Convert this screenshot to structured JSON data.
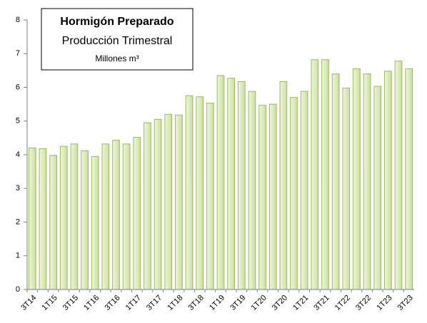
{
  "chart_data": {
    "type": "bar",
    "title": "Hormigón Preparado",
    "subtitle": "Producción Trimestral",
    "unit": "Millones m³",
    "categories": [
      "3T14",
      null,
      "1T15",
      null,
      "3T15",
      null,
      "1T16",
      null,
      "3T16",
      null,
      "1T17",
      null,
      "3T17",
      null,
      "1T18",
      null,
      "3T18",
      null,
      "1T19",
      null,
      "3T19",
      null,
      "1T20",
      null,
      "3T20",
      null,
      "1T21",
      null,
      "3T21",
      null,
      "1T22",
      null,
      "3T22",
      null,
      "1T23",
      null,
      "3T23"
    ],
    "values": [
      4.2,
      4.18,
      3.98,
      4.25,
      4.32,
      4.12,
      3.95,
      4.32,
      4.43,
      4.32,
      4.52,
      4.95,
      5.05,
      5.2,
      5.18,
      5.75,
      5.72,
      5.53,
      6.35,
      6.27,
      6.17,
      5.88,
      5.47,
      5.5,
      6.17,
      5.7,
      5.88,
      6.82,
      6.82,
      6.4,
      5.98,
      6.55,
      6.4,
      6.03,
      6.48,
      6.78,
      6.55
    ],
    "color": "#d7e9b4",
    "edge_color": "#9bbb59",
    "ylim": [
      0,
      8
    ],
    "yticks": [
      0,
      1,
      2,
      3,
      4,
      5,
      6,
      7,
      8
    ],
    "grid": false
  }
}
